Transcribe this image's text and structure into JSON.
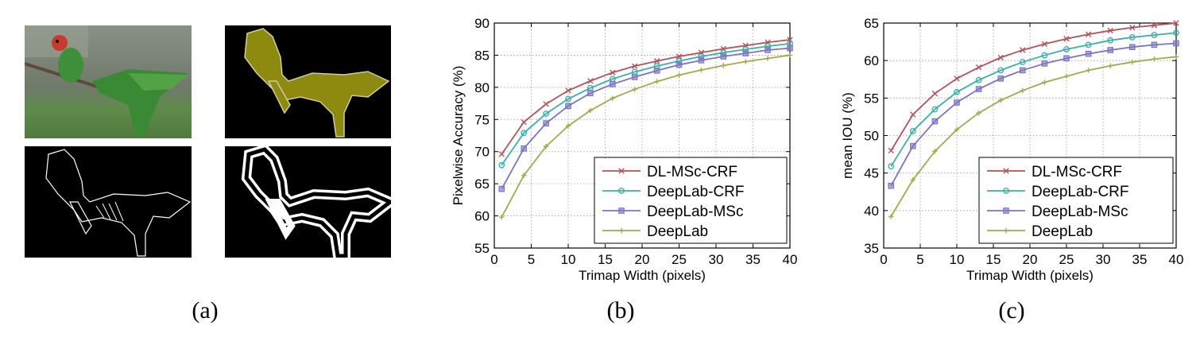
{
  "panels": {
    "a": {
      "caption": "(a)",
      "images": [
        {
          "name": "input-photo",
          "description_icon": "parrot-photo-icon"
        },
        {
          "name": "ground-truth-mask",
          "description_icon": "parrot-mask-icon"
        },
        {
          "name": "object-boundary",
          "description_icon": "parrot-boundary-icon"
        },
        {
          "name": "trimap-band",
          "description_icon": "parrot-trimap-icon"
        }
      ]
    },
    "b": {
      "caption": "(b)"
    },
    "c": {
      "caption": "(c)"
    }
  },
  "colors": {
    "dl_msc_crf": "#b5525a",
    "deeplab_crf": "#3bb0a8",
    "deeplab_msc": "#7b74c4",
    "deeplab": "#a6a84e",
    "mask": "#8e8a10"
  },
  "chart_data": [
    {
      "id": "b",
      "type": "line",
      "title": "",
      "xlabel": "Trimap Width (pixels)",
      "ylabel": "Pixelwise Accuracy (%)",
      "xlim": [
        0,
        40
      ],
      "ylim": [
        55,
        90
      ],
      "xticks": [
        0,
        5,
        10,
        15,
        20,
        25,
        30,
        35,
        40
      ],
      "yticks": [
        55,
        60,
        65,
        70,
        75,
        80,
        85,
        90
      ],
      "grid": true,
      "legend": "bottom-right",
      "x": [
        1,
        4,
        7,
        10,
        13,
        16,
        19,
        22,
        25,
        28,
        31,
        34,
        37,
        40
      ],
      "series": [
        {
          "name": "DL-MSc-CRF",
          "marker": "x",
          "color_key": "dl_msc_crf",
          "values": [
            69.6,
            74.6,
            77.4,
            79.5,
            81.0,
            82.3,
            83.3,
            84.1,
            84.8,
            85.4,
            86.0,
            86.5,
            87.0,
            87.4
          ]
        },
        {
          "name": "DeepLab-CRF",
          "marker": "o",
          "color_key": "deeplab_crf",
          "values": [
            67.9,
            72.9,
            75.9,
            78.2,
            79.9,
            81.3,
            82.4,
            83.3,
            84.1,
            84.8,
            85.4,
            85.9,
            86.4,
            86.8
          ]
        },
        {
          "name": "DeepLab-MSc",
          "marker": "s",
          "color_key": "deeplab_msc",
          "values": [
            64.2,
            70.5,
            74.4,
            77.1,
            79.1,
            80.5,
            81.6,
            82.6,
            83.5,
            84.2,
            84.8,
            85.3,
            85.8,
            86.1
          ]
        },
        {
          "name": "DeepLab",
          "marker": "+",
          "color_key": "deeplab",
          "values": [
            59.8,
            66.3,
            70.8,
            74.0,
            76.4,
            78.3,
            79.7,
            80.9,
            81.9,
            82.7,
            83.4,
            84.0,
            84.5,
            85.0
          ]
        }
      ]
    },
    {
      "id": "c",
      "type": "line",
      "title": "",
      "xlabel": "Trimap Width (pixels)",
      "ylabel": "mean IOU (%)",
      "xlim": [
        0,
        40
      ],
      "ylim": [
        35,
        65
      ],
      "xticks": [
        0,
        5,
        10,
        15,
        20,
        25,
        30,
        35,
        40
      ],
      "yticks": [
        35,
        40,
        45,
        50,
        55,
        60,
        65
      ],
      "grid": true,
      "legend": "bottom-right",
      "x": [
        1,
        4,
        7,
        10,
        13,
        16,
        19,
        22,
        25,
        28,
        31,
        34,
        37,
        40
      ],
      "series": [
        {
          "name": "DL-MSc-CRF",
          "marker": "x",
          "color_key": "dl_msc_crf",
          "values": [
            48.0,
            52.8,
            55.6,
            57.6,
            59.1,
            60.4,
            61.4,
            62.2,
            62.9,
            63.5,
            64.0,
            64.4,
            64.7,
            65.0
          ]
        },
        {
          "name": "DeepLab-CRF",
          "marker": "o",
          "color_key": "deeplab_crf",
          "values": [
            45.9,
            50.6,
            53.5,
            55.8,
            57.4,
            58.7,
            59.8,
            60.7,
            61.5,
            62.1,
            62.7,
            63.1,
            63.4,
            63.7
          ]
        },
        {
          "name": "DeepLab-MSc",
          "marker": "s",
          "color_key": "deeplab_msc",
          "values": [
            43.3,
            48.6,
            51.9,
            54.4,
            56.2,
            57.6,
            58.7,
            59.6,
            60.3,
            60.9,
            61.4,
            61.8,
            62.1,
            62.3
          ]
        },
        {
          "name": "DeepLab",
          "marker": "+",
          "color_key": "deeplab",
          "values": [
            39.2,
            44.1,
            47.9,
            50.8,
            53.0,
            54.7,
            56.0,
            57.1,
            57.9,
            58.7,
            59.3,
            59.8,
            60.2,
            60.5
          ]
        }
      ]
    }
  ]
}
